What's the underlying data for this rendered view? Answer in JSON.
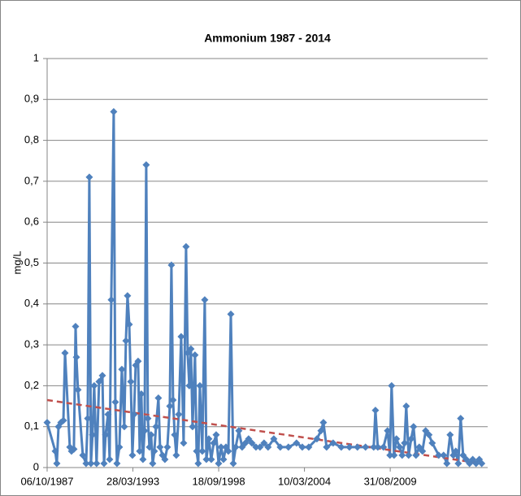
{
  "chart_data": {
    "type": "line",
    "title": "Ammonium 1987 - 2014",
    "y_label": "mg/L",
    "color": "#4f81bd",
    "grid": true,
    "xlim": [
      "1987-10-06",
      "2015-11-20"
    ],
    "xticks": [
      {
        "value": "1987-10-06",
        "label": "06/10/1987"
      },
      {
        "value": "1993-03-28",
        "label": "28/03/1993"
      },
      {
        "value": "1998-09-18",
        "label": "18/09/1998"
      },
      {
        "value": "2004-03-10",
        "label": "10/03/2004"
      },
      {
        "value": "2009-08-31",
        "label": "31/08/2009"
      }
    ],
    "ylim": [
      0,
      1
    ],
    "yticks": [
      0,
      {
        "value": 0.1,
        "label": "0,1"
      },
      {
        "value": 0.2,
        "label": "0,2"
      },
      {
        "value": 0.3,
        "label": "0,3"
      },
      {
        "value": 0.4,
        "label": "0,4"
      },
      {
        "value": 0.5,
        "label": "0,5"
      },
      {
        "value": 0.6,
        "label": "0,6"
      },
      {
        "value": 0.7,
        "label": "0,7"
      },
      {
        "value": 0.8,
        "label": "0,8"
      },
      {
        "value": 0.9,
        "label": "0,9"
      },
      1
    ],
    "x": [
      "1987-10-06",
      "1988-04-12",
      "1988-05-19",
      "1988-06-27",
      "1988-08-22",
      "1988-10-19",
      "1988-11-25",
      "1989-03-18",
      "1989-04-26",
      "1989-06-21",
      "1989-07-30",
      "1989-08-18",
      "1989-09-24",
      "1990-01-15",
      "1990-04-01",
      "1990-05-08",
      "1990-06-16",
      "1990-07-23",
      "1990-08-29",
      "1990-10-07",
      "1990-12-02",
      "1991-01-29",
      "1991-04-16",
      "1991-05-24",
      "1991-06-30",
      "1991-08-26",
      "1991-10-02",
      "1991-11-09",
      "1992-01-05",
      "1992-02-12",
      "1992-03-21",
      "1992-05-17",
      "1992-07-13",
      "1992-09-08",
      "1992-10-16",
      "1992-11-22",
      "1993-01-01",
      "1993-02-07",
      "1993-03-17",
      "1993-04-23",
      "1993-05-31",
      "1993-07-27",
      "1993-09-02",
      "1993-10-10",
      "1993-11-17",
      "1993-12-25",
      "1994-02-01",
      "1994-03-11",
      "1994-04-18",
      "1994-05-26",
      "1994-07-02",
      "1994-08-09",
      "1994-09-16",
      "1994-11-12",
      "1994-12-20",
      "1995-02-16",
      "1995-04-13",
      "1995-06-09",
      "1995-08-05",
      "1995-09-12",
      "1995-10-19",
      "1995-11-26",
      "1996-01-03",
      "1996-02-29",
      "1996-04-26",
      "1996-06-22",
      "1996-08-18",
      "1996-09-25",
      "1996-11-01",
      "1996-12-09",
      "1997-01-16",
      "1997-03-14",
      "1997-04-21",
      "1997-05-29",
      "1997-07-06",
      "1997-09-01",
      "1997-10-28",
      "1997-12-05",
      "1998-01-31",
      "1998-03-29",
      "1998-05-25",
      "1998-07-21",
      "1998-09-16",
      "1998-11-12",
      "1999-01-08",
      "1999-03-06",
      "1999-05-02",
      "1999-06-28",
      "1999-08-24",
      "1999-10-20",
      "2000-01-01",
      "2000-03-17",
      "2000-06-01",
      "2000-08-16",
      "2000-10-31",
      "2001-02-03",
      "2001-05-08",
      "2001-08-10",
      "2001-11-12",
      "2002-03-26",
      "2002-08-24",
      "2003-03-02",
      "2003-09-07",
      "2004-01-19",
      "2004-06-18",
      "2004-12-25",
      "2005-03-30",
      "2005-05-26",
      "2005-08-08",
      "2006-01-08",
      "2006-07-16",
      "2007-01-22",
      "2007-07-28",
      "2008-02-02",
      "2008-08-10",
      "2008-09-20",
      "2008-11-14",
      "2009-03-26",
      "2009-06-29",
      "2009-08-24",
      "2009-10-02",
      "2009-11-28",
      "2010-01-23",
      "2010-04-08",
      "2010-06-05",
      "2010-07-31",
      "2010-09-08",
      "2010-11-03",
      "2011-01-01",
      "2011-02-25",
      "2011-04-23",
      "2011-07-08",
      "2011-09-21",
      "2011-12-05",
      "2012-02-20",
      "2012-05-06",
      "2012-10-05",
      "2013-01-26",
      "2013-04-12",
      "2013-06-27",
      "2013-09-10",
      "2013-11-06",
      "2014-01-03",
      "2014-02-28",
      "2014-04-26",
      "2014-07-09",
      "2014-09-23",
      "2014-12-07",
      "2015-02-22",
      "2015-05-08",
      "2015-07-04"
    ],
    "values": [
      0.11,
      0.04,
      0.01,
      0.1,
      0.11,
      0.115,
      0.28,
      0.05,
      0.04,
      0.045,
      0.345,
      0.27,
      0.19,
      0.03,
      0.01,
      0.12,
      0.71,
      0.01,
      0.08,
      0.2,
      0.01,
      0.21,
      0.225,
      0.01,
      0.08,
      0.13,
      0.02,
      0.41,
      0.87,
      0.16,
      0.01,
      0.05,
      0.24,
      0.1,
      0.31,
      0.42,
      0.35,
      0.21,
      0.03,
      0.13,
      0.25,
      0.26,
      0.04,
      0.18,
      0.02,
      0.09,
      0.74,
      0.12,
      0.05,
      0.08,
      0.01,
      0.04,
      0.1,
      0.17,
      0.05,
      0.03,
      0.02,
      0.05,
      0.15,
      0.495,
      0.165,
      0.08,
      0.03,
      0.13,
      0.32,
      0.06,
      0.54,
      0.28,
      0.2,
      0.29,
      0.1,
      0.275,
      0.04,
      0.01,
      0.2,
      0.04,
      0.41,
      0.02,
      0.07,
      0.02,
      0.06,
      0.08,
      0.01,
      0.05,
      0.02,
      0.05,
      0.04,
      0.375,
      0.01,
      0.05,
      0.09,
      0.05,
      0.06,
      0.07,
      0.06,
      0.05,
      0.05,
      0.06,
      0.05,
      0.07,
      0.05,
      0.05,
      0.06,
      0.05,
      0.05,
      0.07,
      0.09,
      0.11,
      0.05,
      0.06,
      0.05,
      0.05,
      0.05,
      0.05,
      0.05,
      0.14,
      0.05,
      0.05,
      0.09,
      0.03,
      0.2,
      0.03,
      0.07,
      0.05,
      0.03,
      0.06,
      0.15,
      0.03,
      0.07,
      0.1,
      0.03,
      0.05,
      0.04,
      0.09,
      0.08,
      0.06,
      0.03,
      0.03,
      0.01,
      0.08,
      0.03,
      0.04,
      0.01,
      0.12,
      0.03,
      0.02,
      0.01,
      0.02,
      0.01,
      0.02,
      0.01
    ],
    "trendline": {
      "x": [
        "1987-10-06",
        "2015-07-04"
      ],
      "values": [
        0.165,
        0.01
      ],
      "color": "#c0504d"
    }
  }
}
